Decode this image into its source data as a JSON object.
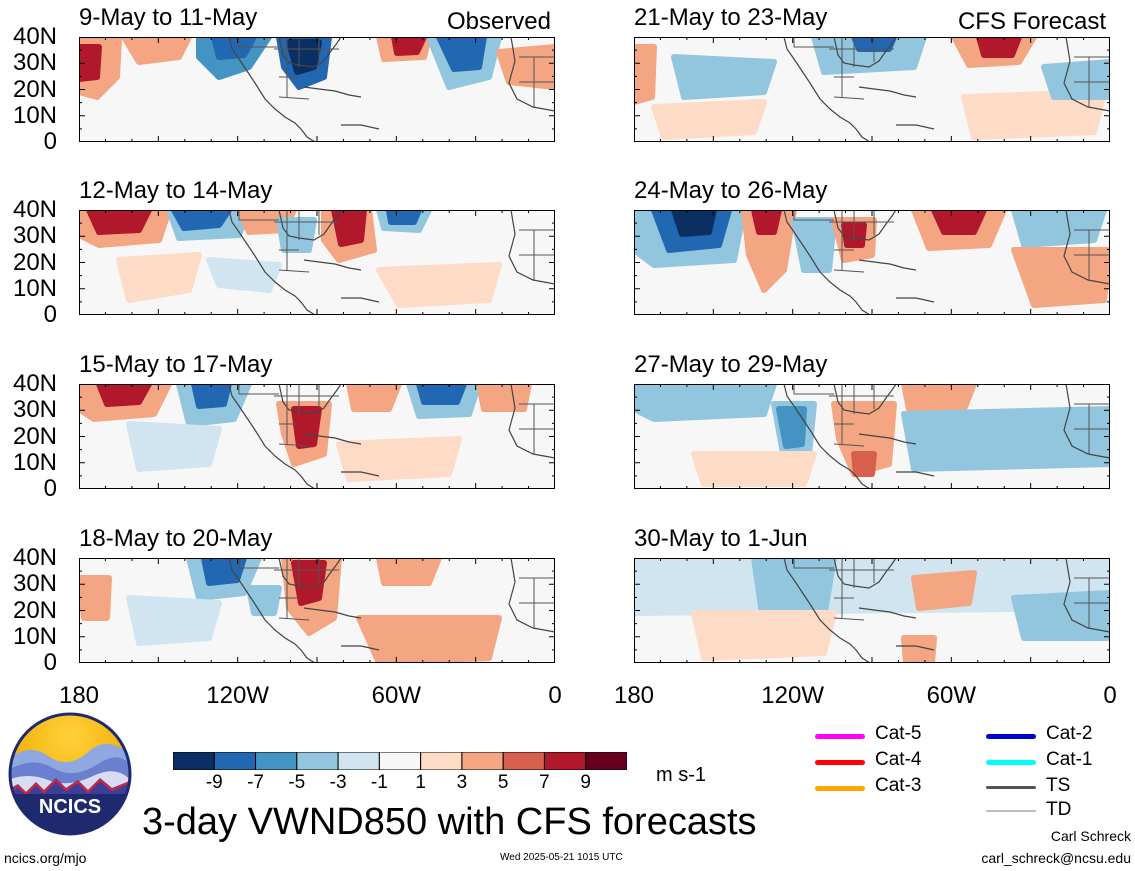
{
  "panels_left": [
    {
      "period": "9-May to 11-May",
      "tag": "Observed"
    },
    {
      "period": "12-May to 14-May",
      "tag": ""
    },
    {
      "period": "15-May to 17-May",
      "tag": ""
    },
    {
      "period": "18-May to 20-May",
      "tag": ""
    }
  ],
  "panels_right": [
    {
      "period": "21-May to 23-May",
      "tag": "CFS Forecast"
    },
    {
      "period": "24-May to 26-May",
      "tag": ""
    },
    {
      "period": "27-May to 29-May",
      "tag": ""
    },
    {
      "period": "30-May to 1-Jun",
      "tag": ""
    }
  ],
  "y_ticks": [
    "40N",
    "30N",
    "20N",
    "10N",
    "0"
  ],
  "x_ticks": [
    "180",
    "120W",
    "60W",
    "0"
  ],
  "colorbar": {
    "labels": [
      "-9",
      "-7",
      "-5",
      "-3",
      "-1",
      "1",
      "3",
      "5",
      "7",
      "9"
    ],
    "colors": [
      "#0b2f63",
      "#2267b1",
      "#4393c3",
      "#92c5de",
      "#d1e5f0",
      "#f7f7f7",
      "#fddbc7",
      "#f4a582",
      "#d6604d",
      "#b2182b",
      "#67001f"
    ],
    "unit": "m s-1"
  },
  "legend": [
    {
      "label": "Cat-5",
      "color": "#ff00ff"
    },
    {
      "label": "Cat-4",
      "color": "#ff0000"
    },
    {
      "label": "Cat-3",
      "color": "#ffa500"
    },
    {
      "label": "Cat-2",
      "color": "#0000cd"
    },
    {
      "label": "Cat-1",
      "color": "#00ffff"
    },
    {
      "label": "TS",
      "color": "#555555"
    },
    {
      "label": "TD",
      "color": "#bbbbbb"
    }
  ],
  "logo": {
    "text": "NCICS"
  },
  "title": "3-day VWND850 with CFS forecasts",
  "footer": {
    "site": "ncics.org/mjo",
    "timestamp": "Wed 2025-05-21 1015 UTC",
    "author": "Carl Schreck",
    "email": "carl_schreck@ncsu.edu"
  }
}
